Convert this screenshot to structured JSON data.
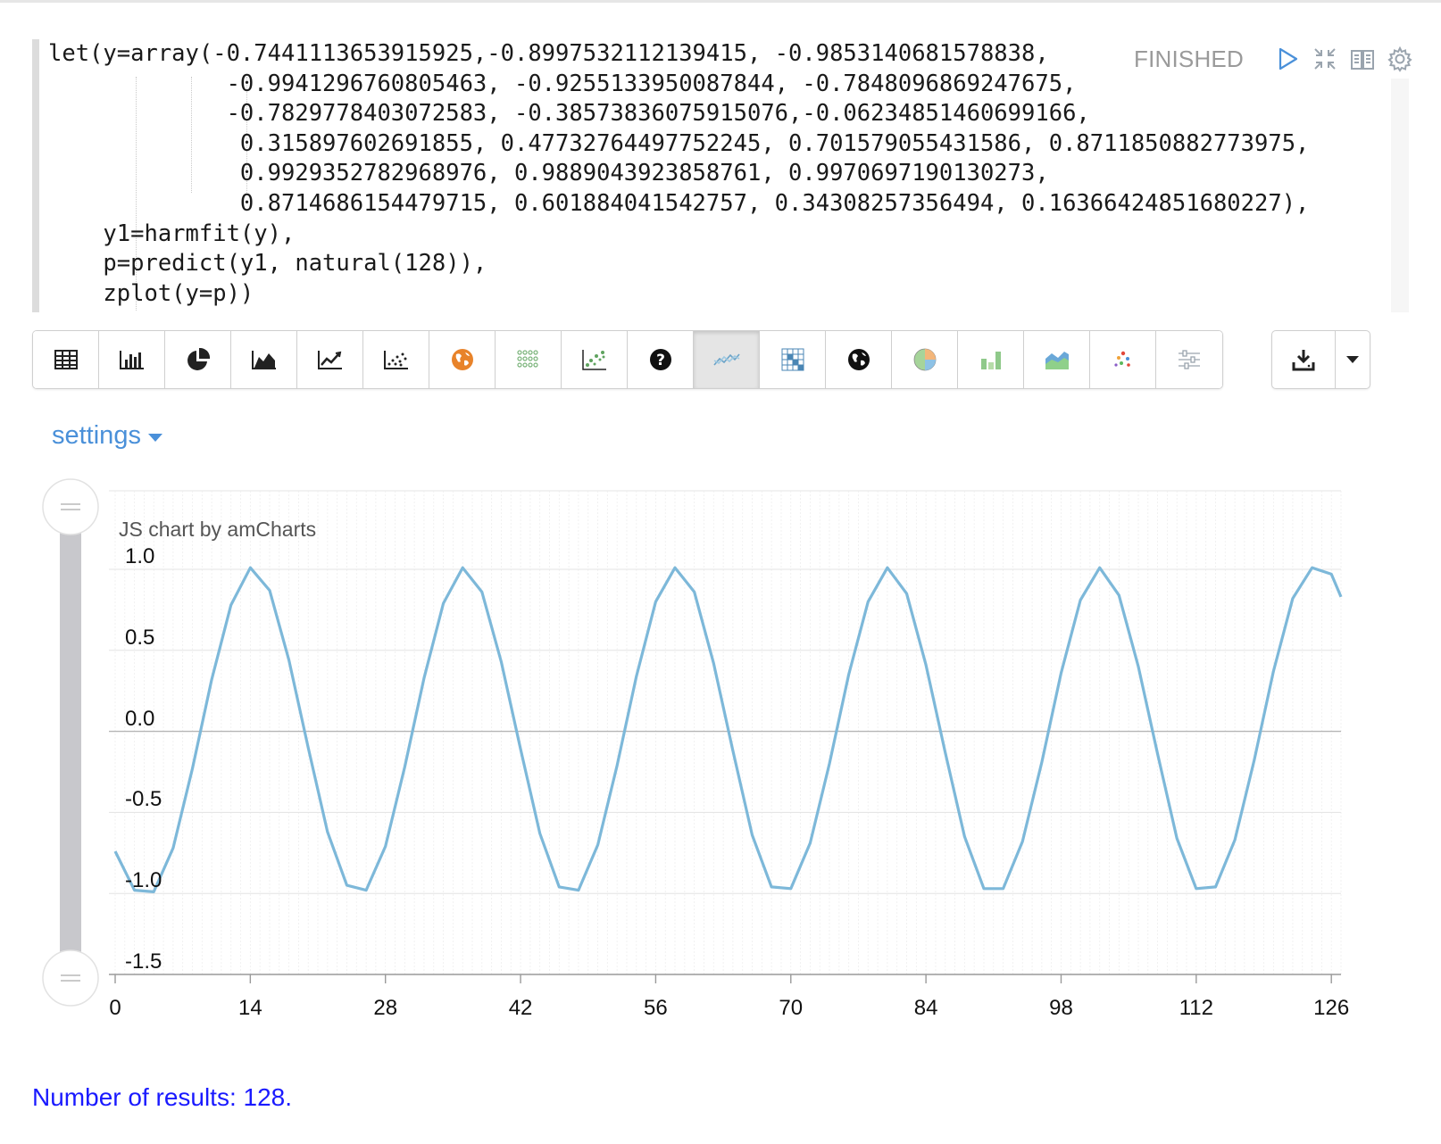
{
  "editor": {
    "lines": [
      "let(y=array(-0.7441113653915925,-0.8997532112139415, -0.9853140681578838,",
      "             -0.9941296760805463, -0.9255133950087844, -0.7848096869247675,",
      "             -0.7829778403072583, -0.38573836075915076,-0.06234851460699166,",
      "              0.315897602691855, 0.47732764497752245, 0.701579055431586, 0.8711850882773975,",
      "              0.9929352782968976, 0.9889043923858761, 0.9970697190130273,",
      "              0.8714686154479715, 0.601884041542757, 0.34308257356494, 0.16366424851680227),",
      "    y1=harmfit(y),",
      "    p=predict(y1, natural(128)),",
      "    zplot(y=p))"
    ]
  },
  "paragraph": {
    "status": "FINISHED",
    "icons": [
      "run-icon",
      "collapse-icon",
      "book-icon",
      "gear-icon"
    ]
  },
  "toolbar": {
    "buttons": [
      {
        "name": "table-icon"
      },
      {
        "name": "bar-chart-icon"
      },
      {
        "name": "pie-chart-icon"
      },
      {
        "name": "area-chart-icon"
      },
      {
        "name": "line-chart-icon"
      },
      {
        "name": "scatter-chart-icon"
      },
      {
        "name": "globe-orange-icon"
      },
      {
        "name": "heatmap-dots-icon"
      },
      {
        "name": "bubble-chart-icon"
      },
      {
        "name": "help-icon"
      },
      {
        "name": "multi-line-chart-icon",
        "active": true
      },
      {
        "name": "grid-map-icon"
      },
      {
        "name": "globe-icon"
      },
      {
        "name": "amcharts-pie-icon"
      },
      {
        "name": "amcharts-bar-icon"
      },
      {
        "name": "amcharts-area-icon"
      },
      {
        "name": "amcharts-scatter-icon"
      },
      {
        "name": "sliders-icon"
      }
    ],
    "download_icon": "download-icon",
    "dropdown_icon": "caret-down-icon"
  },
  "settings": {
    "label": "settings"
  },
  "chart": {
    "credit": "JS chart by amCharts"
  },
  "chart_data": {
    "type": "line",
    "title": "",
    "xlabel": "",
    "ylabel": "",
    "x_range": [
      0,
      127
    ],
    "x_ticks": [
      "0",
      "14",
      "28",
      "42",
      "56",
      "70",
      "84",
      "98",
      "112",
      "126"
    ],
    "x_tick_values": [
      0,
      14,
      28,
      42,
      56,
      70,
      84,
      98,
      112,
      126
    ],
    "y_ticks": [
      "1.0",
      "0.5",
      "0.0",
      "-0.5",
      "-1.0",
      "-1.5"
    ],
    "y_tick_values": [
      1.0,
      0.5,
      0.0,
      -0.5,
      -1.0,
      -1.5
    ],
    "ylim": [
      -1.5,
      1.0
    ],
    "grid": true,
    "color": "#7db8d9",
    "series": [
      {
        "x": [
          0,
          2,
          4,
          6,
          8,
          10,
          12,
          14,
          16,
          18,
          20,
          22,
          24,
          26,
          28,
          30,
          32,
          34,
          36,
          38,
          40,
          42,
          44,
          46,
          48,
          50,
          52,
          54,
          56,
          58,
          60,
          62,
          64,
          66,
          68,
          70,
          72,
          74,
          76,
          78,
          80,
          82,
          84,
          86,
          88,
          90,
          92,
          94,
          96,
          98,
          100,
          102,
          104,
          106,
          108,
          110,
          112,
          114,
          116,
          118,
          120,
          122,
          124,
          126,
          127
        ],
        "values": [
          -0.74,
          -0.98,
          -0.99,
          -0.72,
          -0.23,
          0.32,
          0.78,
          1.01,
          0.87,
          0.44,
          -0.1,
          -0.62,
          -0.95,
          -0.98,
          -0.71,
          -0.22,
          0.33,
          0.79,
          1.01,
          0.86,
          0.43,
          -0.11,
          -0.63,
          -0.96,
          -0.98,
          -0.7,
          -0.21,
          0.34,
          0.8,
          1.01,
          0.86,
          0.42,
          -0.12,
          -0.64,
          -0.96,
          -0.97,
          -0.69,
          -0.2,
          0.35,
          0.8,
          1.01,
          0.85,
          0.41,
          -0.13,
          -0.65,
          -0.97,
          -0.97,
          -0.68,
          -0.19,
          0.36,
          0.81,
          1.01,
          0.84,
          0.4,
          -0.14,
          -0.66,
          -0.97,
          -0.96,
          -0.67,
          -0.18,
          0.37,
          0.82,
          1.01,
          0.97,
          0.83
        ]
      }
    ]
  },
  "results": {
    "text": "Number of results: 128."
  }
}
